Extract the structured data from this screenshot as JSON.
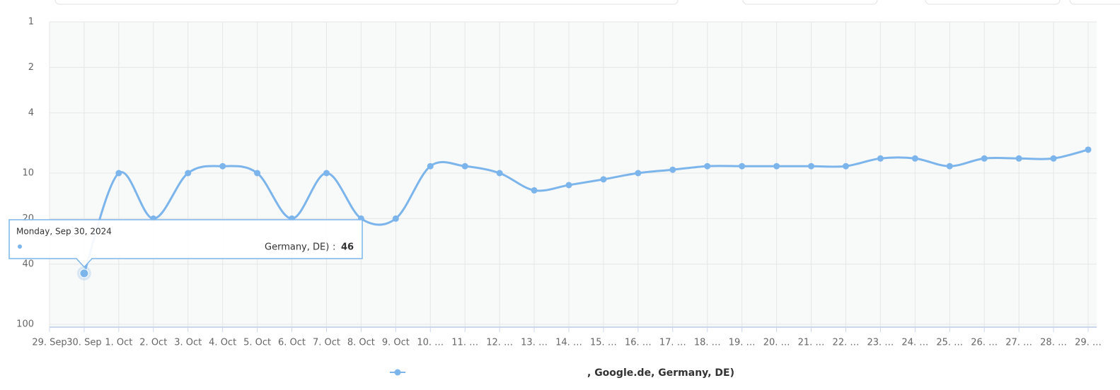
{
  "chart_data": {
    "type": "line",
    "categories": [
      "29. Sep",
      "30. Sep",
      "1. Oct",
      "2. Oct",
      "3. Oct",
      "4. Oct",
      "5. Oct",
      "6. Oct",
      "7. Oct",
      "8. Oct",
      "9. Oct",
      "10. …",
      "11. …",
      "12. …",
      "13. …",
      "14. …",
      "15. …",
      "16. …",
      "17. …",
      "18. …",
      "19. …",
      "20. …",
      "21. …",
      "22. …",
      "23. …",
      "24. …",
      "25. …",
      "26. …",
      "27. …",
      "28. …",
      "29. …"
    ],
    "series": [
      {
        "name": ", Google.de, Germany, DE)",
        "color": "#7cb5ec",
        "values": [
          null,
          46,
          10,
          20,
          10,
          9,
          10,
          20,
          10,
          20,
          20,
          9,
          9,
          10,
          13,
          12,
          11,
          10,
          9.5,
          9,
          9,
          9,
          9,
          9,
          8,
          8,
          9,
          8,
          8,
          8,
          7
        ]
      }
    ],
    "ylim": [
      1,
      100
    ],
    "yticks": [
      1,
      2,
      4,
      10,
      20,
      40,
      100
    ],
    "log_y": true,
    "y_reversed": true,
    "grid": true,
    "tooltip": {
      "header": "Monday, Sep 30, 2024",
      "series_label": "Germany, DE)"
    }
  }
}
